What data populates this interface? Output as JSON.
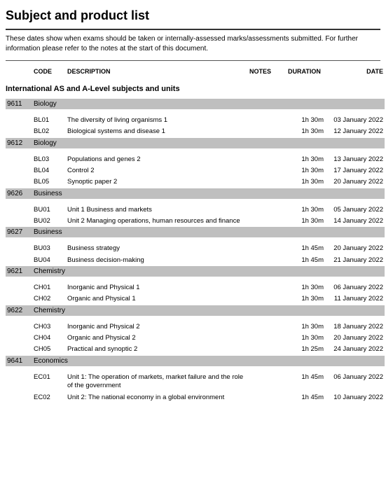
{
  "title": "Subject and product list",
  "intro": "These dates show when exams should be taken or internally-assessed marks/assessments submitted.  For further information please refer to the notes at the start of this document.",
  "headers": {
    "code": "CODE",
    "description": "DESCRIPTION",
    "notes": "NOTES",
    "duration": "DURATION",
    "date": "DATE"
  },
  "section_title": "International AS and A-Level subjects and units",
  "colors": {
    "subject_band": "#bfbfbf",
    "rule": "#333333",
    "text": "#000000",
    "background": "#ffffff"
  },
  "subjects": [
    {
      "number": "9611",
      "name": "Biology",
      "units": [
        {
          "code": "BL01",
          "description": "The diversity of living organisms 1",
          "notes": "",
          "duration": "1h 30m",
          "date": "03 January 2022"
        },
        {
          "code": "BL02",
          "description": "Biological systems and disease 1",
          "notes": "",
          "duration": "1h 30m",
          "date": "12 January 2022"
        }
      ]
    },
    {
      "number": "9612",
      "name": "Biology",
      "units": [
        {
          "code": "BL03",
          "description": "Populations and genes 2",
          "notes": "",
          "duration": "1h 30m",
          "date": "13 January 2022"
        },
        {
          "code": "BL04",
          "description": "Control 2",
          "notes": "",
          "duration": "1h 30m",
          "date": "17 January 2022"
        },
        {
          "code": "BL05",
          "description": "Synoptic paper 2",
          "notes": "",
          "duration": "1h 30m",
          "date": "20 January 2022"
        }
      ]
    },
    {
      "number": "9626",
      "name": "Business",
      "units": [
        {
          "code": "BU01",
          "description": "Unit 1 Business and markets",
          "notes": "",
          "duration": "1h 30m",
          "date": "05 January 2022"
        },
        {
          "code": "BU02",
          "description": "Unit 2 Managing operations, human resources and finance",
          "notes": "",
          "duration": "1h 30m",
          "date": "14 January 2022"
        }
      ]
    },
    {
      "number": "9627",
      "name": "Business",
      "units": [
        {
          "code": "BU03",
          "description": "Business strategy",
          "notes": "",
          "duration": "1h 45m",
          "date": "20 January 2022"
        },
        {
          "code": "BU04",
          "description": "Business decision-making",
          "notes": "",
          "duration": "1h 45m",
          "date": "21 January 2022"
        }
      ]
    },
    {
      "number": "9621",
      "name": "Chemistry",
      "units": [
        {
          "code": "CH01",
          "description": "Inorganic and Physical 1",
          "notes": "",
          "duration": "1h 30m",
          "date": "06 January 2022"
        },
        {
          "code": "CH02",
          "description": "Organic and Physical 1",
          "notes": "",
          "duration": "1h 30m",
          "date": "11 January 2022"
        }
      ]
    },
    {
      "number": "9622",
      "name": "Chemistry",
      "units": [
        {
          "code": "CH03",
          "description": "Inorganic and Physical 2",
          "notes": "",
          "duration": "1h 30m",
          "date": "18 January 2022"
        },
        {
          "code": "CH04",
          "description": "Organic and Physical 2",
          "notes": "",
          "duration": "1h 30m",
          "date": "20 January 2022"
        },
        {
          "code": "CH05",
          "description": "Practical and synoptic 2",
          "notes": "",
          "duration": "1h 25m",
          "date": "24 January 2022"
        }
      ]
    },
    {
      "number": "9641",
      "name": "Economics",
      "units": [
        {
          "code": "EC01",
          "description": "Unit 1: The operation of markets, market failure and the role of the government",
          "notes": "",
          "duration": "1h 45m",
          "date": "06 January 2022"
        },
        {
          "code": "EC02",
          "description": "Unit 2: The national economy in a global environment",
          "notes": "",
          "duration": "1h 45m",
          "date": "10 January 2022"
        }
      ]
    }
  ]
}
